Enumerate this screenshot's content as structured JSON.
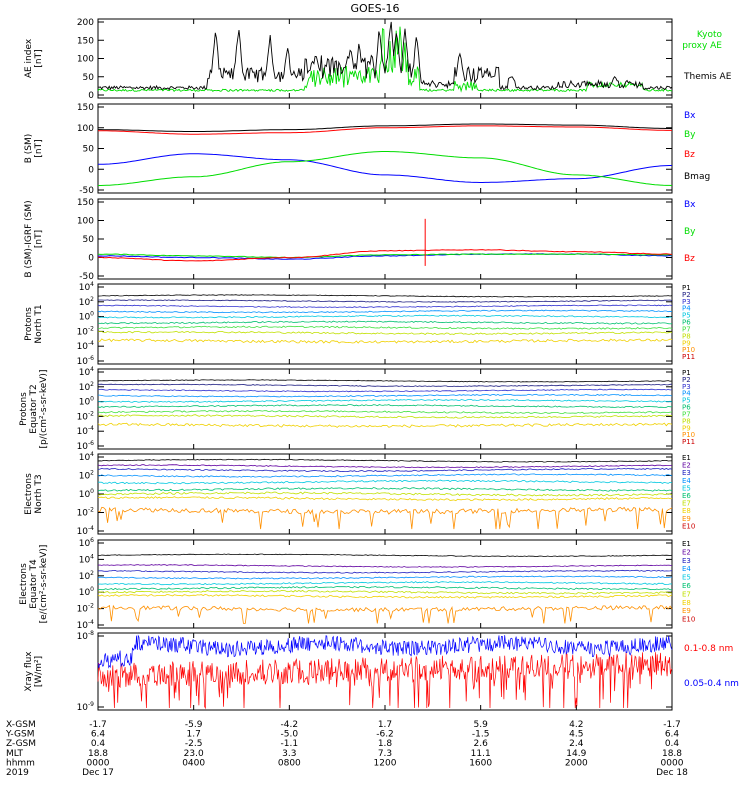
{
  "title": "GOES-16",
  "colors": {
    "black": "#000000",
    "blue": "#0000ff",
    "green": "#00dd00",
    "red": "#ff0000",
    "p": [
      "#000000",
      "#1a1a80",
      "#3030d0",
      "#0090ff",
      "#00c8e0",
      "#00c070",
      "#40e040",
      "#c0e000",
      "#f0d000",
      "#ff9000",
      "#cc0000"
    ],
    "e": [
      "#000000",
      "#6000a0",
      "#2020c0",
      "#0090ff",
      "#00c8e0",
      "#00c070",
      "#c0e000",
      "#f0d000",
      "#ff9000",
      "#cc0000"
    ]
  },
  "panels": [
    {
      "ylabel": [
        "AE index",
        "[nT]"
      ],
      "yticks": [
        "200",
        "150",
        "100",
        "50",
        "0"
      ],
      "legend": [
        {
          "text": "Kyoto",
          "color": "#00dd00"
        },
        {
          "text": "proxy AE",
          "color": "#00dd00"
        },
        {
          "text": "Themis AE",
          "color": "#000000"
        }
      ]
    },
    {
      "ylabel": [
        "B (SM)",
        "[nT]"
      ],
      "yticks": [
        "150",
        "100",
        "50",
        "0",
        "-50"
      ],
      "legend": [
        {
          "text": "Bx",
          "color": "#0000ff"
        },
        {
          "text": "By",
          "color": "#00dd00"
        },
        {
          "text": "Bz",
          "color": "#ff0000"
        },
        {
          "text": "Bmag",
          "color": "#000000"
        }
      ]
    },
    {
      "ylabel": [
        "B (SM)-IGRF (SM)",
        "[nT]"
      ],
      "yticks": [
        "150",
        "100",
        "50",
        "0",
        "-50"
      ],
      "legend": [
        {
          "text": "Bx",
          "color": "#0000ff"
        },
        {
          "text": "By",
          "color": "#00dd00"
        },
        {
          "text": "Bz",
          "color": "#ff0000"
        }
      ]
    },
    {
      "ylabel": [
        "Protons",
        "North T1"
      ],
      "yticks": [
        "10^4",
        "10^2",
        "10^0",
        "10^-2",
        "10^-4",
        "10^-6"
      ],
      "legend": [
        "P1",
        "P2",
        "P3",
        "P4",
        "P5",
        "P6",
        "P7",
        "P8",
        "P9",
        "P10",
        "P11"
      ]
    },
    {
      "ylabel": [
        "Protons",
        "Equator T2",
        "[p/(cm^2-s-sr-keV)]"
      ],
      "yticks": [
        "10^4",
        "10^2",
        "10^0",
        "10^-2",
        "10^-4",
        "10^-6"
      ],
      "legend": [
        "P1",
        "P2",
        "P3",
        "P4",
        "P5",
        "P6",
        "P7",
        "P8",
        "P9",
        "P10",
        "P11"
      ]
    },
    {
      "ylabel": [
        "Electrons",
        "North T3"
      ],
      "yticks": [
        "10^4",
        "10^2",
        "10^0",
        "10^-2",
        "10^-4"
      ],
      "legend": [
        "E1",
        "E2",
        "E3",
        "E4",
        "E5",
        "E6",
        "E7",
        "E8",
        "E9",
        "E10"
      ]
    },
    {
      "ylabel": [
        "Electrons",
        "Equator T4",
        "[e/(cm^2-s-sr-keV)]"
      ],
      "yticks": [
        "10^6",
        "10^4",
        "10^2",
        "10^0",
        "10^-2",
        "10^-4"
      ],
      "legend": [
        "E1",
        "E2",
        "E3",
        "E4",
        "E5",
        "E6",
        "E7",
        "E8",
        "E9",
        "E10"
      ]
    },
    {
      "ylabel": [
        "Xray flux",
        "[W/m^2]"
      ],
      "yticks": [
        "10^-8",
        "10^-9"
      ],
      "legend": [
        {
          "text": "0.1-0.8 nm",
          "color": "#ff0000"
        },
        {
          "text": "0.05-0.4 nm",
          "color": "#0000ff"
        }
      ]
    }
  ],
  "axis_rows": [
    {
      "label": "X-GSM",
      "values": [
        "-1.7",
        "-5.9",
        "-4.2",
        "1.7",
        "5.9",
        "4.2",
        "-1.7"
      ]
    },
    {
      "label": "Y-GSM",
      "values": [
        "6.4",
        "1.7",
        "-5.0",
        "-6.2",
        "-1.5",
        "4.5",
        "6.4"
      ]
    },
    {
      "label": "Z-GSM",
      "values": [
        "0.4",
        "-2.5",
        "-1.1",
        "1.8",
        "2.6",
        "2.4",
        "0.4"
      ]
    },
    {
      "label": "MLT",
      "values": [
        "18.8",
        "23.0",
        "3.3",
        "7.3",
        "11.1",
        "14.9",
        "18.8"
      ]
    },
    {
      "label": "hhmm",
      "values": [
        "0000",
        "0400",
        "0800",
        "1200",
        "1600",
        "2000",
        "0000"
      ]
    },
    {
      "label": "2019",
      "values": [
        "Dec 17",
        "",
        "",
        "",
        "",
        "",
        "Dec 18"
      ]
    }
  ],
  "chart_data": [
    {
      "type": "line",
      "title": "GOES-16",
      "ylabel": "AE index [nT]",
      "ylim": [
        0,
        200
      ],
      "x": [
        "0000",
        "0400",
        "0800",
        "1200",
        "1600",
        "2000",
        "0000"
      ],
      "series": [
        {
          "name": "Themis AE",
          "values": [
            20,
            120,
            80,
            160,
            60,
            40,
            10
          ]
        },
        {
          "name": "Kyoto proxy AE",
          "values": [
            15,
            30,
            60,
            150,
            20,
            30,
            10
          ]
        }
      ]
    },
    {
      "type": "line",
      "ylabel": "B (SM) [nT]",
      "ylim": [
        -60,
        160
      ],
      "x": [
        "0000",
        "0400",
        "0800",
        "1200",
        "1600",
        "2000",
        "0000"
      ],
      "series": [
        {
          "name": "Bmag",
          "values": [
            100,
            95,
            100,
            110,
            115,
            112,
            103
          ]
        },
        {
          "name": "Bz",
          "values": [
            97,
            88,
            92,
            105,
            110,
            107,
            98
          ]
        },
        {
          "name": "Bx",
          "values": [
            8,
            36,
            20,
            -20,
            -40,
            -30,
            5
          ]
        },
        {
          "name": "By",
          "values": [
            -48,
            -25,
            15,
            42,
            25,
            -20,
            -48
          ]
        }
      ]
    },
    {
      "type": "line",
      "ylabel": "B (SM)-IGRF (SM) [nT]",
      "ylim": [
        -60,
        160
      ],
      "x": [
        "0000",
        "0400",
        "0800",
        "1200",
        "1600",
        "2000",
        "0000"
      ],
      "series": [
        {
          "name": "Bx",
          "values": [
            0,
            -5,
            -10,
            0,
            5,
            5,
            0
          ]
        },
        {
          "name": "By",
          "values": [
            5,
            0,
            -5,
            3,
            5,
            5,
            3
          ]
        },
        {
          "name": "Bz",
          "values": [
            -5,
            -15,
            -5,
            15,
            18,
            12,
            5
          ]
        }
      ]
    },
    {
      "type": "line",
      "ylabel": "Protons North T1 (log10 flux)",
      "ylim": [
        -6,
        4
      ],
      "series": [
        {
          "name": "P1",
          "values": [
            2.8
          ]
        },
        {
          "name": "P2",
          "values": [
            2.1
          ]
        },
        {
          "name": "P3",
          "values": [
            1.4
          ]
        },
        {
          "name": "P4",
          "values": [
            0.7
          ]
        },
        {
          "name": "P5",
          "values": [
            0.0
          ]
        },
        {
          "name": "P6",
          "values": [
            -0.8
          ]
        },
        {
          "name": "P7",
          "values": [
            -1.5
          ]
        },
        {
          "name": "P8",
          "values": [
            -2.2
          ]
        },
        {
          "name": "P9",
          "values": [
            -3.3
          ]
        }
      ]
    },
    {
      "type": "line",
      "ylabel": "Protons Equator T2 (log10 flux)",
      "ylim": [
        -6,
        4
      ],
      "series": [
        {
          "name": "P1",
          "values": [
            2.8
          ]
        },
        {
          "name": "P2",
          "values": [
            2.2
          ]
        },
        {
          "name": "P3",
          "values": [
            1.5
          ]
        },
        {
          "name": "P4",
          "values": [
            0.8
          ]
        },
        {
          "name": "P5",
          "values": [
            0.1
          ]
        },
        {
          "name": "P6",
          "values": [
            -0.6
          ]
        },
        {
          "name": "P7",
          "values": [
            -1.4
          ]
        },
        {
          "name": "P8",
          "values": [
            -2.0
          ]
        },
        {
          "name": "P9",
          "values": [
            -3.2
          ]
        }
      ]
    },
    {
      "type": "line",
      "ylabel": "Electrons North T3 (log10 flux)",
      "ylim": [
        -4,
        4
      ],
      "series": [
        {
          "name": "E1",
          "values": [
            3.6
          ]
        },
        {
          "name": "E2",
          "values": [
            3.0
          ]
        },
        {
          "name": "E3",
          "values": [
            2.6
          ]
        },
        {
          "name": "E4",
          "values": [
            2.0
          ]
        },
        {
          "name": "E5",
          "values": [
            1.3
          ]
        },
        {
          "name": "E6",
          "values": [
            0.5
          ]
        },
        {
          "name": "E7",
          "values": [
            0.0
          ]
        },
        {
          "name": "E8",
          "values": [
            -0.5
          ]
        },
        {
          "name": "E9",
          "values": [
            -1.8
          ]
        }
      ]
    },
    {
      "type": "line",
      "ylabel": "Electrons Equator T4 (log10 flux)",
      "ylim": [
        -4,
        6
      ],
      "series": [
        {
          "name": "E1",
          "values": [
            4.5
          ]
        },
        {
          "name": "E2",
          "values": [
            3.2
          ]
        },
        {
          "name": "E3",
          "values": [
            2.5
          ]
        },
        {
          "name": "E4",
          "values": [
            1.8
          ]
        },
        {
          "name": "E5",
          "values": [
            1.1
          ]
        },
        {
          "name": "E6",
          "values": [
            0.5
          ]
        },
        {
          "name": "E7",
          "values": [
            0.0
          ]
        },
        {
          "name": "E8",
          "values": [
            -0.5
          ]
        },
        {
          "name": "E9",
          "values": [
            -2.0
          ]
        }
      ]
    },
    {
      "type": "line",
      "ylabel": "Xray flux [W/m^2]",
      "ylim": [
        -9,
        -8
      ],
      "series": [
        {
          "name": "0.1-0.8 nm",
          "values": [
            -8.6
          ]
        },
        {
          "name": "0.05-0.4 nm",
          "values": [
            -8.1
          ]
        }
      ]
    }
  ]
}
